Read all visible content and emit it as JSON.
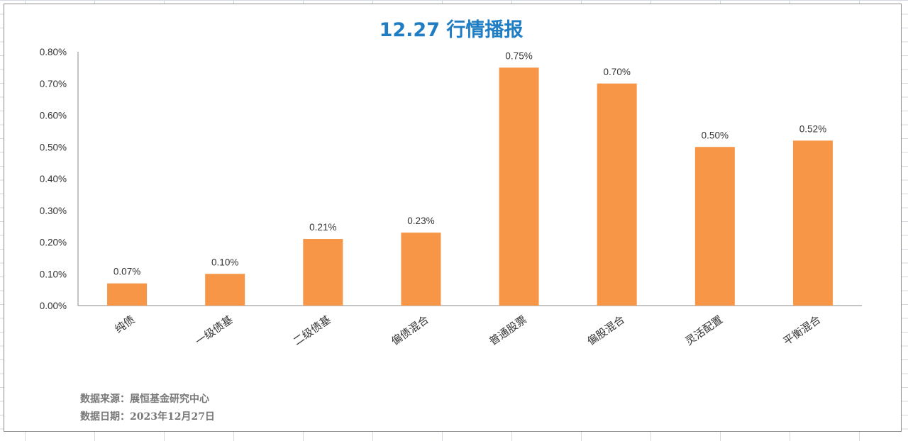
{
  "chart_data": {
    "type": "bar",
    "title": "12.27 行情播报",
    "categories": [
      "纯债",
      "一级债基",
      "二级债基",
      "偏债混合",
      "普通股票",
      "偏股混合",
      "灵活配置",
      "平衡混合"
    ],
    "values": [
      0.07,
      0.1,
      0.21,
      0.23,
      0.75,
      0.7,
      0.5,
      0.52
    ],
    "data_labels": [
      "0.07%",
      "0.10%",
      "0.21%",
      "0.23%",
      "0.75%",
      "0.70%",
      "0.50%",
      "0.52%"
    ],
    "y_ticks": [
      "0.00%",
      "0.10%",
      "0.20%",
      "0.30%",
      "0.40%",
      "0.50%",
      "0.60%",
      "0.70%",
      "0.80%"
    ],
    "ylim": [
      0,
      0.8
    ],
    "unit": "%",
    "grid": false,
    "bar_color": "#f79646",
    "title_color": "#1f7dc4"
  },
  "notes": {
    "source": "数据来源：展恒基金研究中心",
    "date": "数据日期：2023年12月27日"
  }
}
